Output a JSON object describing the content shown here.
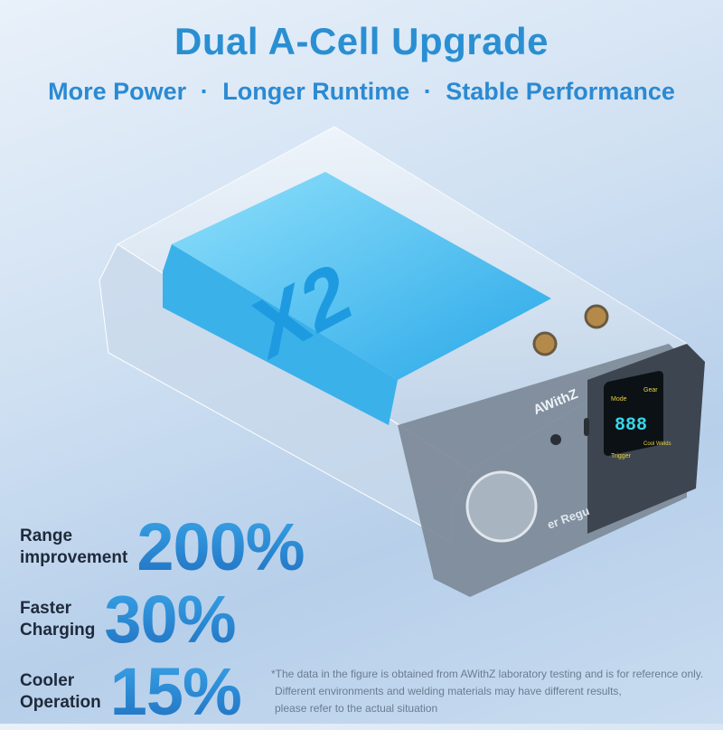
{
  "header": {
    "title": "Dual A-Cell Upgrade",
    "features": [
      "More Power",
      "Longer Runtime",
      "Stable Performance"
    ],
    "separator": "·"
  },
  "product": {
    "cell_label": "X2",
    "brand": "AWithZ",
    "side_text": "er Regu",
    "display": {
      "digits": "888",
      "mode": "Mode",
      "gear": "Gear",
      "trigger": "Trigger",
      "cool": "Cool Welds"
    }
  },
  "stats": [
    {
      "label_line1": "Range",
      "label_line2": "improvement",
      "value": "200%"
    },
    {
      "label_line1": "Faster",
      "label_line2": "Charging",
      "value": "30%"
    },
    {
      "label_line1": "Cooler",
      "label_line2": "Operation",
      "value": "15%"
    }
  ],
  "footnote": {
    "line1": "*The data in the figure is obtained from AWithZ laboratory testing and is for reference only.",
    "line2": "Different environments and welding materials may have different results,",
    "line3": "please refer to the actual situation"
  },
  "colors": {
    "accent": "#2a8fd2",
    "cell": "#3fbff0",
    "display": "#36d6e8"
  }
}
